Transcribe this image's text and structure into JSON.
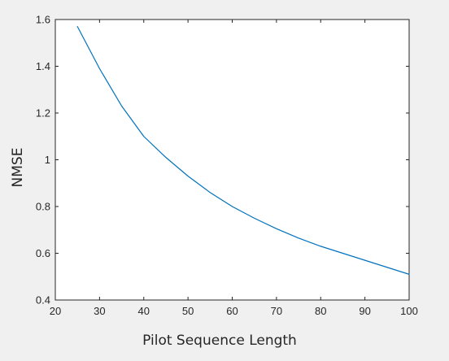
{
  "chart_data": {
    "type": "line",
    "title": "",
    "xlabel": "Pilot Sequence Length",
    "ylabel": "NMSE",
    "xlim": [
      20,
      100
    ],
    "ylim": [
      0.4,
      1.6
    ],
    "xticks": [
      20,
      30,
      40,
      50,
      60,
      70,
      80,
      90,
      100
    ],
    "yticks": [
      0.4,
      0.6,
      0.8,
      1,
      1.2,
      1.4,
      1.6
    ],
    "xtick_labels": [
      "20",
      "30",
      "40",
      "50",
      "60",
      "70",
      "80",
      "90",
      "100"
    ],
    "ytick_labels": [
      "0.4",
      "0.6",
      "0.8",
      "1",
      "1.2",
      "1.4",
      "1.6"
    ],
    "grid": false,
    "series": [
      {
        "color": "#0072bd",
        "x": [
          25,
          30,
          35,
          40,
          45,
          50,
          55,
          60,
          65,
          70,
          75,
          80,
          85,
          90,
          95,
          100
        ],
        "values": [
          1.57,
          1.39,
          1.23,
          1.1,
          1.01,
          0.93,
          0.86,
          0.8,
          0.75,
          0.705,
          0.665,
          0.63,
          0.6,
          0.57,
          0.54,
          0.51
        ]
      }
    ]
  }
}
